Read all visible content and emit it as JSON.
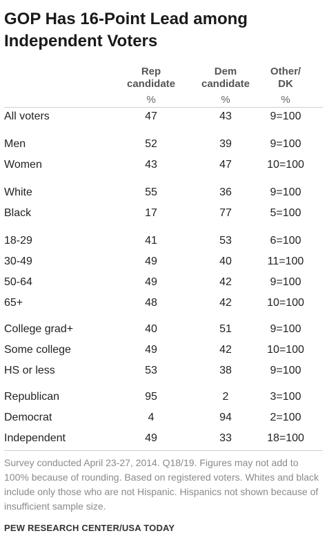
{
  "title": "GOP Has 16-Point Lead among Independent  Voters",
  "columns": [
    {
      "label": "Rep\ncandidate",
      "unit": "%"
    },
    {
      "label": "Dem\ncandidate",
      "unit": "%"
    },
    {
      "label": "Other/\nDK",
      "unit": "%"
    }
  ],
  "rows": [
    {
      "label": "All voters",
      "values": [
        "47",
        "43",
        "9=100"
      ]
    },
    {
      "label": "Men",
      "values": [
        "52",
        "39",
        "9=100"
      ]
    },
    {
      "label": "Women",
      "values": [
        "43",
        "47",
        "10=100"
      ]
    },
    {
      "label": "White",
      "values": [
        "55",
        "36",
        "9=100"
      ]
    },
    {
      "label": "Black",
      "values": [
        "17",
        "77",
        "5=100"
      ]
    },
    {
      "label": "18-29",
      "values": [
        "41",
        "53",
        "6=100"
      ]
    },
    {
      "label": "30-49",
      "values": [
        "49",
        "40",
        "11=100"
      ]
    },
    {
      "label": "50-64",
      "values": [
        "49",
        "42",
        "9=100"
      ]
    },
    {
      "label": "65+",
      "values": [
        "48",
        "42",
        "10=100"
      ]
    },
    {
      "label": "College grad+",
      "values": [
        "40",
        "51",
        "9=100"
      ]
    },
    {
      "label": "Some college",
      "values": [
        "49",
        "42",
        "10=100"
      ]
    },
    {
      "label": "HS or less",
      "values": [
        "53",
        "38",
        "9=100"
      ]
    },
    {
      "label": "Republican",
      "values": [
        "95",
        "2",
        "3=100"
      ]
    },
    {
      "label": "Democrat",
      "values": [
        "4",
        "94",
        "2=100"
      ]
    },
    {
      "label": "Independent",
      "values": [
        "49",
        "33",
        "18=100"
      ]
    }
  ],
  "note": "Survey conducted April 23-27, 2014. Q18/19. Figures may not add to 100%  because of rounding. Based on registered voters. Whites and black include only those who are not Hispanic. Hispanics not shown because of insufficient sample size.",
  "source": "PEW RESEARCH CENTER/USA TODAY",
  "chart_data": {
    "type": "table",
    "title": "GOP Has 16-Point Lead among Independent  Voters",
    "columns": [
      "Rep candidate",
      "Dem candidate",
      "Other/ DK"
    ],
    "unit": "%",
    "rows": [
      {
        "label": "All voters",
        "values": [
          47,
          43,
          "9=100"
        ]
      },
      {
        "label": "Men",
        "values": [
          52,
          39,
          "9=100"
        ]
      },
      {
        "label": "Women",
        "values": [
          43,
          47,
          "10=100"
        ]
      },
      {
        "label": "White",
        "values": [
          55,
          36,
          "9=100"
        ]
      },
      {
        "label": "Black",
        "values": [
          17,
          77,
          "5=100"
        ]
      },
      {
        "label": "18-29",
        "values": [
          41,
          53,
          "6=100"
        ]
      },
      {
        "label": "30-49",
        "values": [
          49,
          40,
          "11=100"
        ]
      },
      {
        "label": "50-64",
        "values": [
          49,
          42,
          "9=100"
        ]
      },
      {
        "label": "65+",
        "values": [
          48,
          42,
          "10=100"
        ]
      },
      {
        "label": "College grad+",
        "values": [
          40,
          51,
          "9=100"
        ]
      },
      {
        "label": "Some college",
        "values": [
          49,
          42,
          "10=100"
        ]
      },
      {
        "label": "HS or less",
        "values": [
          53,
          38,
          "9=100"
        ]
      },
      {
        "label": "Republican",
        "values": [
          95,
          2,
          "3=100"
        ]
      },
      {
        "label": "Democrat",
        "values": [
          4,
          94,
          "2=100"
        ]
      },
      {
        "label": "Independent",
        "values": [
          49,
          33,
          "18=100"
        ]
      }
    ]
  }
}
